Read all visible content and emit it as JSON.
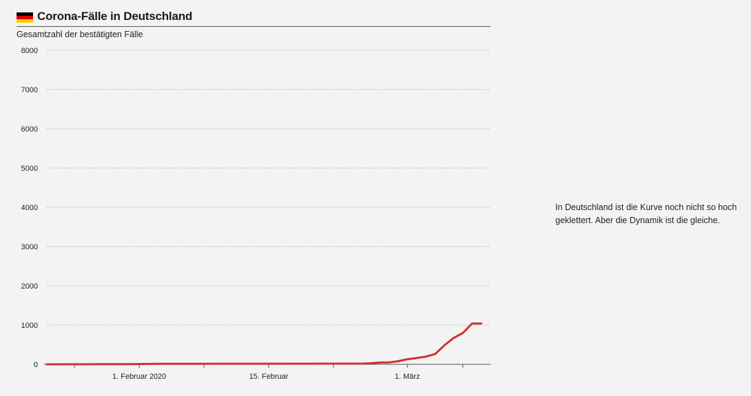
{
  "header": {
    "title": "Corona-Fälle in Deutschland",
    "flag_colors": [
      "#000000",
      "#dd0000",
      "#ffce00"
    ]
  },
  "annotation": {
    "line1": "In Deutschland ist die Kurve noch nicht so hoch",
    "line2": "geklettert. Aber die Dynamik ist die gleiche."
  },
  "chart_data": {
    "type": "line",
    "title": "Corona-Fälle in Deutschland",
    "subtitle": "Gesamtzahl der bestätigten Fälle",
    "xlabel": "",
    "ylabel": "",
    "x_range": [
      "2020-01-22",
      "2020-03-10"
    ],
    "ylim": [
      0,
      8000
    ],
    "yticks": [
      0,
      1000,
      2000,
      3000,
      4000,
      5000,
      6000,
      7000,
      8000
    ],
    "xticks": [
      {
        "date": "2020-02-01",
        "label": "1. Februar 2020"
      },
      {
        "date": "2020-02-15",
        "label": "15. Februar"
      },
      {
        "date": "2020-03-01",
        "label": "1. März"
      }
    ],
    "minor_xtick_dates": [
      "2020-01-25",
      "2020-02-08",
      "2020-02-22",
      "2020-03-07"
    ],
    "grid": true,
    "series": [
      {
        "color": "#cc3333",
        "x": [
          "2020-01-22",
          "2020-01-27",
          "2020-01-28",
          "2020-01-31",
          "2020-02-03",
          "2020-02-07",
          "2020-02-11",
          "2020-02-13",
          "2020-02-25",
          "2020-02-26",
          "2020-02-27",
          "2020-02-28",
          "2020-02-29",
          "2020-03-01",
          "2020-03-02",
          "2020-03-03",
          "2020-03-04",
          "2020-03-05",
          "2020-03-06",
          "2020-03-07",
          "2020-03-08",
          "2020-03-09"
        ],
        "values": [
          0,
          1,
          4,
          5,
          12,
          13,
          16,
          16,
          18,
          27,
          46,
          48,
          79,
          130,
          159,
          196,
          262,
          482,
          670,
          799,
          1040,
          1040
        ]
      }
    ]
  }
}
